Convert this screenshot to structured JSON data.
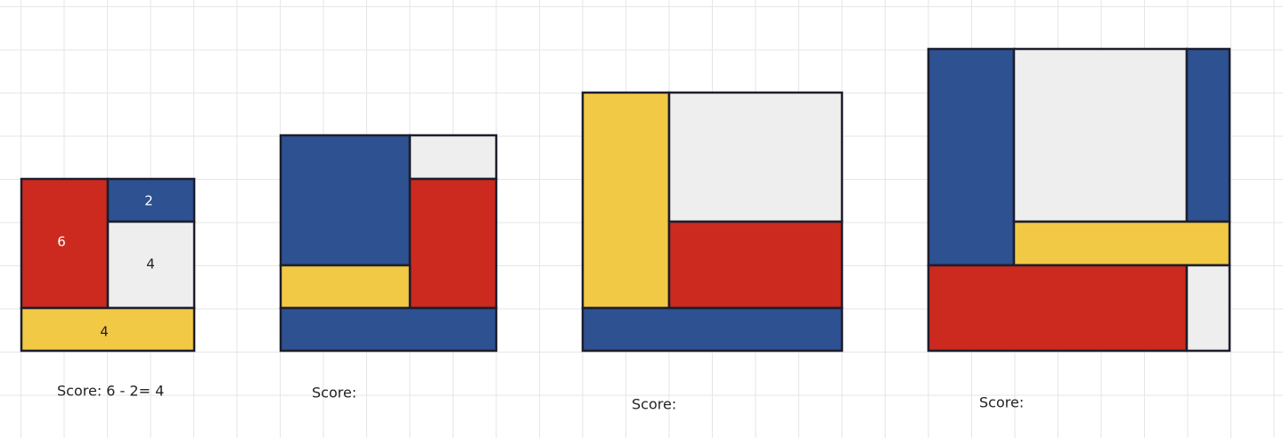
{
  "puzzles": [
    {
      "labels": [
        "6",
        "2",
        "4",
        "4"
      ],
      "score": "Score: 6 - 2= 4"
    },
    {
      "score": "Score:"
    },
    {
      "score": "Score:"
    },
    {
      "score": "Score:"
    }
  ]
}
